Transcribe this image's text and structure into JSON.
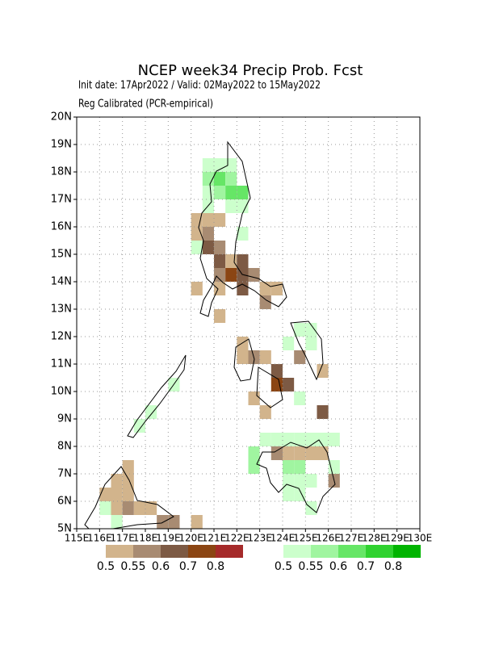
{
  "title": "NCEP week34 Precip Prob. Fcst",
  "subtitle": "Init date: 17Apr2022 / Valid: 02May2022 to 15May2022",
  "subtitle2": "Reg Calibrated (PCR-empirical)",
  "map": {
    "lonlim": [
      115,
      130
    ],
    "latlim": [
      5,
      20
    ],
    "grid": true,
    "cell_size": 0.5,
    "lonticks": [
      {
        "value": 115,
        "label": "115E"
      },
      {
        "value": 116,
        "label": "116E"
      },
      {
        "value": 117,
        "label": "117E"
      },
      {
        "value": 118,
        "label": "118E"
      },
      {
        "value": 119,
        "label": "119E"
      },
      {
        "value": 120,
        "label": "120E"
      },
      {
        "value": 121,
        "label": "121E"
      },
      {
        "value": 122,
        "label": "122E"
      },
      {
        "value": 123,
        "label": "123E"
      },
      {
        "value": 124,
        "label": "124E"
      },
      {
        "value": 125,
        "label": "125E"
      },
      {
        "value": 126,
        "label": "126E"
      },
      {
        "value": 127,
        "label": "127E"
      },
      {
        "value": 128,
        "label": "128E"
      },
      {
        "value": 129,
        "label": "129E"
      },
      {
        "value": 130,
        "label": "130E"
      }
    ],
    "latticks": [
      {
        "value": 5,
        "label": "5N"
      },
      {
        "value": 6,
        "label": "6N"
      },
      {
        "value": 7,
        "label": "7N"
      },
      {
        "value": 8,
        "label": "8N"
      },
      {
        "value": 9,
        "label": "9N"
      },
      {
        "value": 10,
        "label": "10N"
      },
      {
        "value": 11,
        "label": "11N"
      },
      {
        "value": 12,
        "label": "12N"
      },
      {
        "value": 13,
        "label": "13N"
      },
      {
        "value": 14,
        "label": "14N"
      },
      {
        "value": 15,
        "label": "15N"
      },
      {
        "value": 16,
        "label": "16N"
      },
      {
        "value": 17,
        "label": "17N"
      },
      {
        "value": 18,
        "label": "18N"
      },
      {
        "value": 19,
        "label": "19N"
      },
      {
        "value": 20,
        "label": "20N"
      }
    ],
    "wet_cells": [
      [
        120.5,
        18,
        0.5
      ],
      [
        121,
        18,
        0.5
      ],
      [
        121.5,
        18,
        0.5
      ],
      [
        120.5,
        17.5,
        0.55
      ],
      [
        121,
        17.5,
        0.6
      ],
      [
        121.5,
        17.5,
        0.55
      ],
      [
        121,
        17,
        0.55
      ],
      [
        121.5,
        17,
        0.6
      ],
      [
        122,
        17,
        0.6
      ],
      [
        120.5,
        17,
        0.5
      ],
      [
        120.5,
        16.5,
        0.5
      ],
      [
        121.5,
        16.5,
        0.5
      ],
      [
        122,
        16.5,
        0.5
      ],
      [
        120,
        15,
        0.5
      ],
      [
        122,
        15.5,
        0.5
      ],
      [
        123,
        8,
        0.5
      ],
      [
        123.5,
        8,
        0.5
      ],
      [
        124,
        8,
        0.5
      ],
      [
        124.5,
        8,
        0.5
      ],
      [
        125,
        8,
        0.5
      ],
      [
        125.5,
        8,
        0.5
      ],
      [
        126,
        8,
        0.5
      ],
      [
        124,
        7,
        0.55
      ],
      [
        124.5,
        7,
        0.55
      ],
      [
        124,
        6.5,
        0.5
      ],
      [
        124.5,
        6.5,
        0.5
      ],
      [
        125,
        6.5,
        0.5
      ],
      [
        124,
        6,
        0.5
      ],
      [
        124.5,
        6,
        0.5
      ],
      [
        125,
        5.5,
        0.5
      ],
      [
        126,
        7,
        0.5
      ],
      [
        122.5,
        7,
        0.55
      ],
      [
        122.5,
        7.5,
        0.55
      ],
      [
        124.5,
        12,
        0.5
      ],
      [
        125,
        12,
        0.5
      ],
      [
        125,
        11.5,
        0.5
      ],
      [
        124,
        11.5,
        0.5
      ],
      [
        124.5,
        9.5,
        0.5
      ],
      [
        117.5,
        8.5,
        0.5
      ],
      [
        118,
        9,
        0.5
      ],
      [
        119,
        10,
        0.5
      ],
      [
        116,
        5.5,
        0.5
      ],
      [
        116.5,
        5,
        0.5
      ]
    ],
    "dry_cells": [
      [
        120,
        16,
        0.5
      ],
      [
        120.5,
        16,
        0.5
      ],
      [
        121,
        16,
        0.5
      ],
      [
        120,
        15.5,
        0.5
      ],
      [
        120.5,
        15.5,
        0.55
      ],
      [
        120.5,
        15,
        0.6
      ],
      [
        121,
        15,
        0.55
      ],
      [
        121,
        14.5,
        0.6
      ],
      [
        121.5,
        14.5,
        0.5
      ],
      [
        122,
        14.5,
        0.6
      ],
      [
        121,
        14,
        0.55
      ],
      [
        121.5,
        14,
        0.7
      ],
      [
        122,
        14,
        0.6
      ],
      [
        122.5,
        14,
        0.55
      ],
      [
        120,
        13.5,
        0.5
      ],
      [
        121,
        13.5,
        0.5
      ],
      [
        122,
        13.5,
        0.6
      ],
      [
        123,
        13.5,
        0.5
      ],
      [
        123.5,
        13.5,
        0.5
      ],
      [
        123,
        13,
        0.55
      ],
      [
        121,
        12.5,
        0.5
      ],
      [
        122,
        11.5,
        0.5
      ],
      [
        122,
        11,
        0.5
      ],
      [
        122.5,
        11,
        0.55
      ],
      [
        123,
        11,
        0.5
      ],
      [
        123.5,
        10.5,
        0.6
      ],
      [
        123.5,
        10,
        0.7
      ],
      [
        124,
        10,
        0.6
      ],
      [
        122.5,
        9.5,
        0.5
      ],
      [
        123,
        9,
        0.5
      ],
      [
        125.5,
        9,
        0.6
      ],
      [
        125.5,
        10.5,
        0.5
      ],
      [
        124.5,
        11,
        0.55
      ],
      [
        124,
        7.5,
        0.5
      ],
      [
        124.5,
        7.5,
        0.5
      ],
      [
        125,
        7.5,
        0.5
      ],
      [
        125.5,
        7.5,
        0.5
      ],
      [
        126,
        6.5,
        0.55
      ],
      [
        123.5,
        7.5,
        0.55
      ],
      [
        116,
        6,
        0.5
      ],
      [
        116.5,
        6,
        0.5
      ],
      [
        116.5,
        6.5,
        0.5
      ],
      [
        117,
        6.5,
        0.5
      ],
      [
        117,
        7,
        0.5
      ],
      [
        116.5,
        5.5,
        0.5
      ],
      [
        117,
        5.5,
        0.55
      ],
      [
        117,
        6,
        0.5
      ],
      [
        117.5,
        5.5,
        0.5
      ],
      [
        118,
        5.5,
        0.5
      ],
      [
        118.5,
        5,
        0.55
      ],
      [
        119,
        5,
        0.55
      ],
      [
        120,
        5,
        0.5
      ]
    ]
  },
  "legend": {
    "dry": {
      "values": [
        0.5,
        0.55,
        0.6,
        0.7,
        0.8
      ],
      "colors": [
        "#d2b48c",
        "#a88b72",
        "#7d5a44",
        "#8b4513",
        "#a52a2a"
      ]
    },
    "wet": {
      "values": [
        0.5,
        0.55,
        0.6,
        0.7,
        0.8
      ],
      "colors": [
        "#ccffcc",
        "#a0f5a0",
        "#66e666",
        "#2fd22f",
        "#00b400"
      ]
    }
  }
}
